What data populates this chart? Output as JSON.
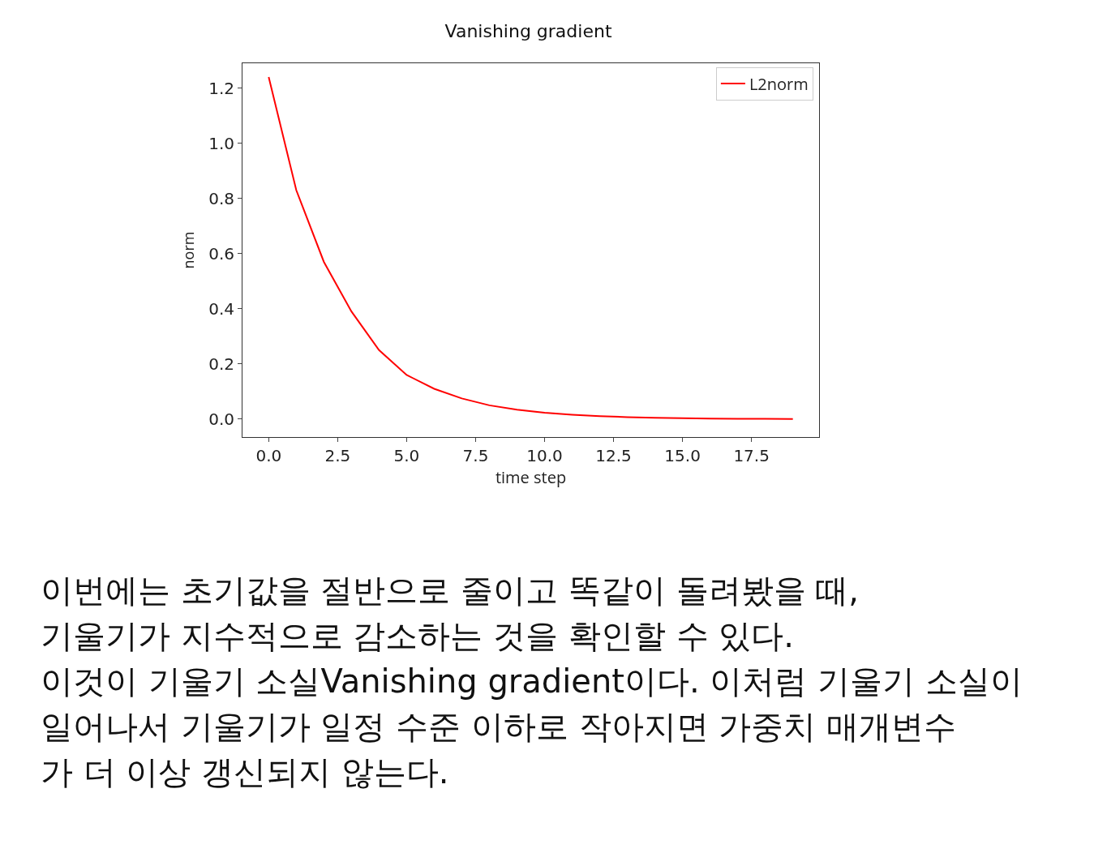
{
  "chart_data": {
    "type": "line",
    "title": "Vanishing gradient",
    "xlabel": "time step",
    "ylabel": "norm",
    "x": [
      0,
      1,
      2,
      3,
      4,
      5,
      6,
      7,
      8,
      9,
      10,
      11,
      12,
      13,
      14,
      15,
      16,
      17,
      18,
      19
    ],
    "series": [
      {
        "name": "L2norm",
        "color": "#ff0000",
        "values": [
          1.24,
          0.83,
          0.57,
          0.39,
          0.25,
          0.16,
          0.11,
          0.075,
          0.05,
          0.034,
          0.023,
          0.016,
          0.011,
          0.007,
          0.005,
          0.003,
          0.002,
          0.0015,
          0.001,
          0.0007
        ]
      }
    ],
    "xlim": [
      -0.95,
      19.95
    ],
    "ylim": [
      -0.065,
      1.29
    ],
    "xticks": [
      {
        "value": 0,
        "label": "0.0"
      },
      {
        "value": 2.5,
        "label": "2.5"
      },
      {
        "value": 5,
        "label": "5.0"
      },
      {
        "value": 7.5,
        "label": "7.5"
      },
      {
        "value": 10,
        "label": "10.0"
      },
      {
        "value": 12.5,
        "label": "12.5"
      },
      {
        "value": 15,
        "label": "15.0"
      },
      {
        "value": 17.5,
        "label": "17.5"
      }
    ],
    "yticks": [
      {
        "value": 0,
        "label": "0.0"
      },
      {
        "value": 0.2,
        "label": "0.2"
      },
      {
        "value": 0.4,
        "label": "0.4"
      },
      {
        "value": 0.6,
        "label": "0.6"
      },
      {
        "value": 0.8,
        "label": "0.8"
      },
      {
        "value": 1,
        "label": "1.0"
      },
      {
        "value": 1.2,
        "label": "1.2"
      }
    ],
    "grid": false,
    "legend": "top right",
    "marker": "none",
    "line_style": "solid",
    "annotations": [
      "이번에는 초기값을 절반으로 줄이고 똑같이 돌려봤을 때,",
      "기울기가 지수적으로 감소하는 것을 확인할 수 있다.",
      "이것이 기울기 소실Vanishing gradient이다. 이처럼 기울기 소실이",
      "일어나서 기울기가 일정 수준 이하로 작아지면 가중치 매개변수",
      "가 더 이상 갱신되지 않는다."
    ]
  }
}
